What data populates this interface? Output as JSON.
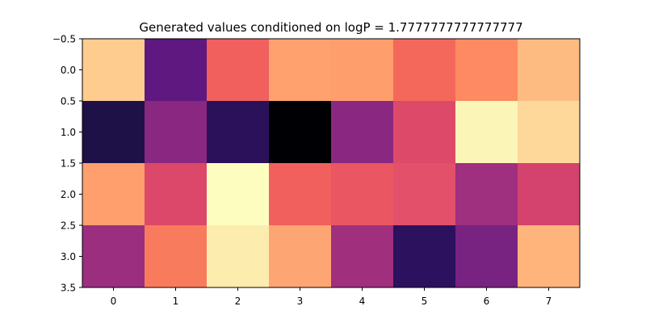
{
  "chart_data": {
    "type": "heatmap",
    "title": "Generated values conditioned on logP = 1.7777777777777777",
    "xlabel": "",
    "ylabel": "",
    "colormap": "magma",
    "xlim": [
      -0.5,
      7.5
    ],
    "ylim": [
      3.5,
      -0.5
    ],
    "y_inverted": true,
    "grid": false,
    "x_ticks": [
      0,
      1,
      2,
      3,
      4,
      5,
      6,
      7
    ],
    "x_tick_labels": [
      "0",
      "1",
      "2",
      "3",
      "4",
      "5",
      "6",
      "7"
    ],
    "y_ticks": [
      -0.5,
      0.0,
      0.5,
      1.0,
      1.5,
      2.0,
      2.5,
      3.0,
      3.5
    ],
    "y_tick_labels": [
      "−0.5",
      "0.0",
      "0.5",
      "1.0",
      "1.5",
      "2.0",
      "2.5",
      "3.0",
      "3.5"
    ],
    "cell_colors": [
      [
        "#fecc8f",
        "#5f187f",
        "#f1605d",
        "#fea16e",
        "#fe9e6c",
        "#f4685c",
        "#fd8a62",
        "#febb81"
      ],
      [
        "#1d1147",
        "#8a2881",
        "#2b1159",
        "#000004",
        "#8a2881",
        "#dd4a69",
        "#fbf6b8",
        "#fed89b"
      ],
      [
        "#fe9f6d",
        "#dc4869",
        "#fcfdbf",
        "#f1605d",
        "#ea5661",
        "#e3506a",
        "#9f2f7f",
        "#d3436e"
      ],
      [
        "#9b2e7f",
        "#f97b5d",
        "#fcecad",
        "#fea673",
        "#a0307e",
        "#2c115f",
        "#782281",
        "#feb47b"
      ]
    ]
  }
}
